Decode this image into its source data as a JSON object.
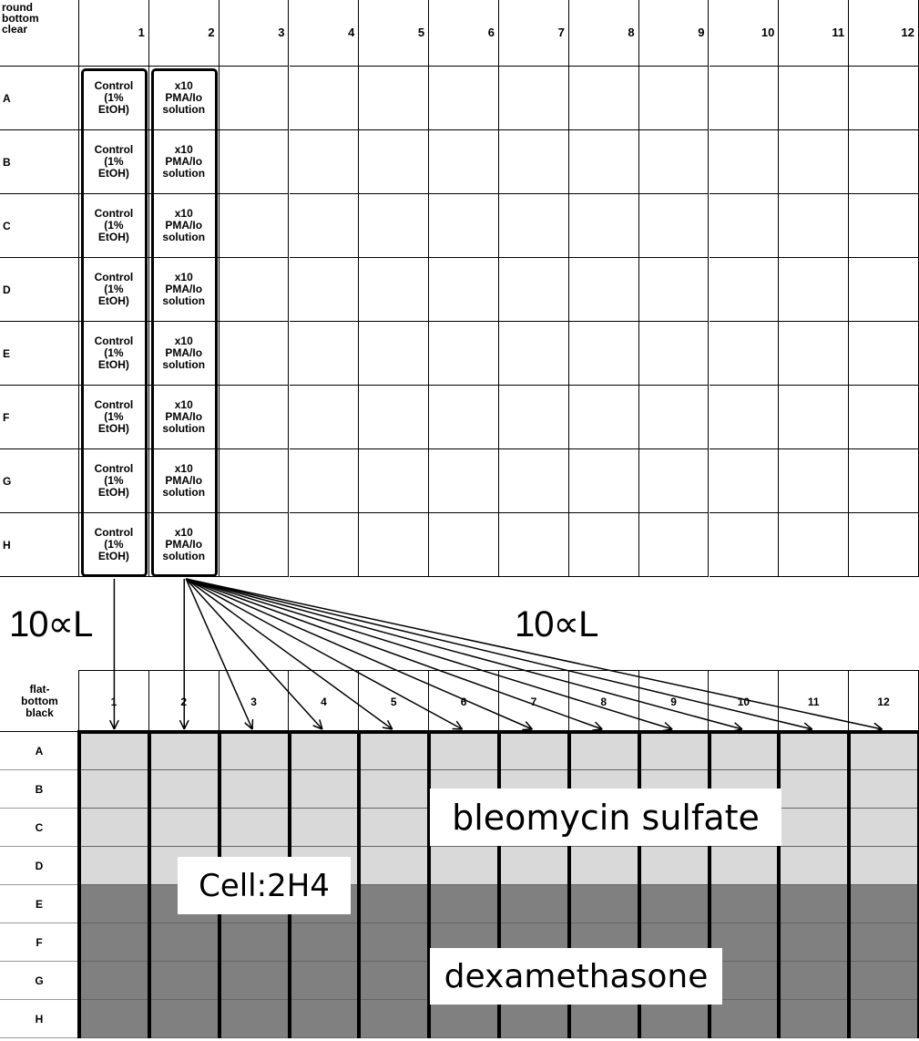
{
  "top_plate": {
    "corner_label": "round bottom clear",
    "columns": [
      1,
      2,
      3,
      4,
      5,
      6,
      7,
      8,
      9,
      10,
      11,
      12
    ],
    "rows": [
      "A",
      "B",
      "C",
      "D",
      "E",
      "F",
      "G",
      "H"
    ],
    "wells": [
      [
        "Control (1% EtOH)",
        "x10 PMA/Io solution"
      ],
      [
        "Control (1% EtOH)",
        "x10 PMA/Io solution"
      ],
      [
        "Control (1% EtOH)",
        "x10 PMA/Io solution"
      ],
      [
        "Control (1% EtOH)",
        "x10 PMA/Io solution"
      ],
      [
        "Control (1% EtOH)",
        "x10 PMA/Io solution"
      ],
      [
        "Control (1% EtOH)",
        "x10 PMA/Io solution"
      ],
      [
        "Control (1% EtOH)",
        "x10 PMA/Io solution"
      ],
      [
        "Control (1% EtOH)",
        "x10 PMA/Io solution"
      ]
    ]
  },
  "transfer_labels": [
    "10∝L",
    "10∝L"
  ],
  "bottom_plate": {
    "corner_label": "flat-bottom black",
    "columns": [
      1,
      2,
      3,
      4,
      5,
      6,
      7,
      8,
      9,
      10,
      11,
      12
    ],
    "rows": [
      "A",
      "B",
      "C",
      "D",
      "E",
      "F",
      "G",
      "H"
    ],
    "annotations": [
      "bleomycin sulfate",
      "Cell:2H4",
      "dexamethasone"
    ]
  }
}
